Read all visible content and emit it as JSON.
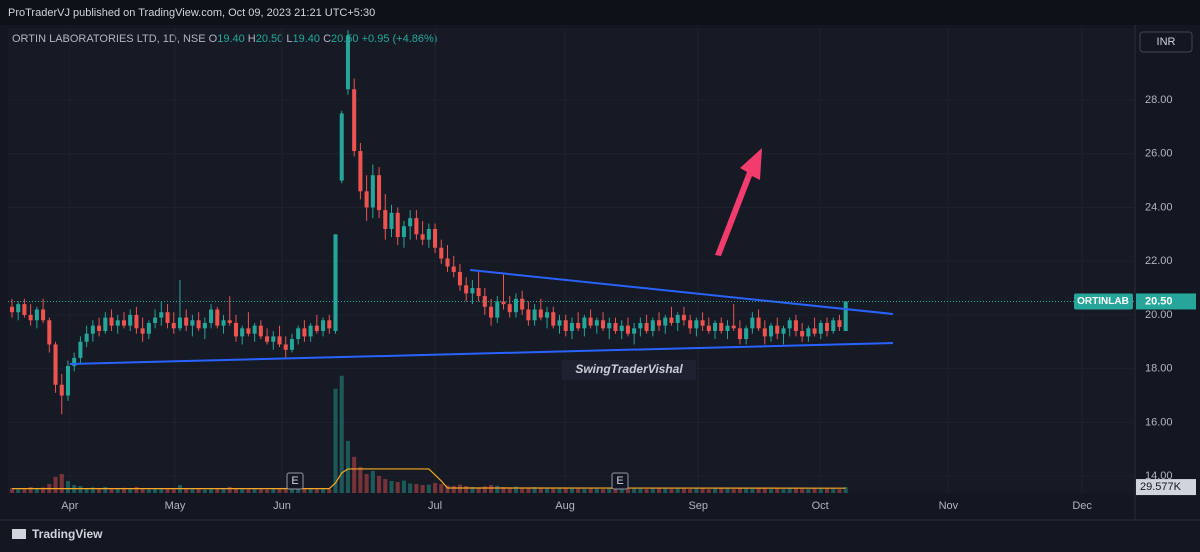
{
  "header": {
    "publisher": "ProTraderVJ published on TradingView.com, Oct 09, 2023 21:21 UTC+5:30",
    "brand": "TradingView"
  },
  "chart_data": {
    "type": "candlestick",
    "symbol": "ORTIN LABORATORIES LTD, 1D, NSE",
    "ohlc_header": [
      {
        "key": "O",
        "value": "19.40"
      },
      {
        "key": "H",
        "value": "20.50"
      },
      {
        "key": "L",
        "value": "19.40"
      },
      {
        "key": "C",
        "value": "20.50"
      }
    ],
    "change": "+0.95 (+4.86%)",
    "currency": "INR",
    "price_label": {
      "symbol": "ORTINLAB",
      "value": "20.50"
    },
    "annotation": "SwingTraderVishal",
    "events": [
      "E",
      "E"
    ],
    "up_color": "#26a69a",
    "down_color": "#ef5350",
    "ylim": [
      13.37,
      30.68
    ],
    "yticks": [
      {
        "value": 14,
        "label": "14.00"
      },
      {
        "value": 16,
        "label": "16.00"
      },
      {
        "value": 18,
        "label": "18.00"
      },
      {
        "value": 20,
        "label": "20.00"
      },
      {
        "value": 22,
        "label": "22.00"
      },
      {
        "value": 24,
        "label": "24.00"
      },
      {
        "value": 26,
        "label": "26.00"
      },
      {
        "value": 28,
        "label": "28.00"
      }
    ],
    "xlim": [
      -0.64,
      180.5
    ],
    "xticks": [
      {
        "value": 9.3,
        "label": "Apr"
      },
      {
        "value": 26.2,
        "label": "May"
      },
      {
        "value": 43.4,
        "label": "Jun"
      },
      {
        "value": 68,
        "label": "Jul"
      },
      {
        "value": 88.9,
        "label": "Aug"
      },
      {
        "value": 110.3,
        "label": "Sep"
      },
      {
        "value": 129.9,
        "label": "Oct"
      },
      {
        "value": 150.5,
        "label": "Nov"
      },
      {
        "value": 172,
        "label": "Dec"
      }
    ],
    "y2lim": [
      0,
      2320
    ],
    "y2ticks": [
      {
        "value": 29.577,
        "label": "29.577K"
      }
    ],
    "ohlc": [
      [
        20.3,
        20.6,
        19.9,
        20.1
      ],
      [
        20.1,
        20.5,
        19.8,
        20.4
      ],
      [
        20.4,
        20.6,
        19.9,
        20.0
      ],
      [
        20.0,
        20.4,
        19.6,
        19.8
      ],
      [
        19.8,
        20.3,
        19.5,
        20.2
      ],
      [
        20.2,
        20.6,
        19.7,
        19.8
      ],
      [
        19.8,
        19.9,
        18.6,
        18.9
      ],
      [
        18.9,
        19.0,
        17.1,
        17.4
      ],
      [
        17.4,
        17.8,
        16.3,
        17.0
      ],
      [
        17.0,
        18.3,
        16.8,
        18.1
      ],
      [
        18.1,
        18.6,
        17.9,
        18.4
      ],
      [
        18.4,
        19.2,
        18.2,
        19.0
      ],
      [
        19.0,
        19.6,
        18.8,
        19.3
      ],
      [
        19.3,
        19.8,
        19.0,
        19.6
      ],
      [
        19.6,
        19.9,
        19.2,
        19.4
      ],
      [
        19.4,
        20.1,
        19.3,
        19.9
      ],
      [
        19.9,
        20.2,
        19.4,
        19.6
      ],
      [
        19.6,
        20.0,
        19.3,
        19.8
      ],
      [
        19.8,
        20.1,
        19.5,
        19.6
      ],
      [
        19.6,
        20.2,
        19.4,
        20.0
      ],
      [
        20.0,
        20.3,
        19.3,
        19.5
      ],
      [
        19.5,
        19.9,
        19.0,
        19.3
      ],
      [
        19.3,
        19.8,
        19.1,
        19.7
      ],
      [
        19.7,
        20.2,
        19.5,
        19.9
      ],
      [
        19.9,
        20.5,
        19.6,
        20.1
      ],
      [
        20.1,
        20.4,
        19.5,
        19.7
      ],
      [
        19.7,
        20.1,
        19.3,
        19.5
      ],
      [
        19.5,
        21.3,
        19.4,
        19.9
      ],
      [
        19.9,
        20.2,
        19.4,
        19.6
      ],
      [
        19.6,
        20.0,
        19.2,
        19.8
      ],
      [
        19.8,
        20.1,
        19.4,
        19.5
      ],
      [
        19.5,
        19.9,
        19.1,
        19.7
      ],
      [
        19.7,
        20.4,
        19.5,
        20.2
      ],
      [
        20.2,
        20.3,
        19.5,
        19.6
      ],
      [
        19.6,
        20.0,
        19.3,
        19.8
      ],
      [
        19.8,
        20.7,
        19.6,
        19.7
      ],
      [
        19.7,
        20.0,
        19.0,
        19.2
      ],
      [
        19.2,
        19.6,
        18.9,
        19.5
      ],
      [
        19.5,
        20.1,
        19.2,
        19.3
      ],
      [
        19.3,
        19.7,
        19.0,
        19.6
      ],
      [
        19.6,
        19.8,
        19.1,
        19.2
      ],
      [
        19.2,
        19.5,
        18.9,
        19.0
      ],
      [
        19.0,
        19.4,
        18.7,
        19.2
      ],
      [
        19.2,
        19.6,
        18.8,
        18.9
      ],
      [
        18.9,
        19.2,
        18.4,
        18.7
      ],
      [
        18.7,
        19.3,
        18.6,
        19.1
      ],
      [
        19.1,
        19.6,
        18.9,
        19.5
      ],
      [
        19.5,
        19.8,
        19.0,
        19.2
      ],
      [
        19.2,
        19.7,
        19.0,
        19.6
      ],
      [
        19.6,
        20.0,
        19.3,
        19.4
      ],
      [
        19.4,
        19.9,
        19.2,
        19.8
      ],
      [
        19.8,
        20.0,
        19.3,
        19.5
      ],
      [
        19.4,
        23.0,
        19.3,
        23.0
      ],
      [
        25.0,
        27.6,
        24.9,
        27.5
      ],
      [
        28.4,
        30.6,
        28.2,
        30.4
      ],
      [
        28.4,
        28.8,
        25.9,
        26.1
      ],
      [
        26.1,
        26.4,
        24.3,
        24.6
      ],
      [
        24.6,
        25.2,
        23.5,
        24.0
      ],
      [
        24.0,
        25.6,
        23.6,
        25.2
      ],
      [
        25.2,
        25.5,
        23.6,
        23.9
      ],
      [
        23.9,
        24.5,
        22.8,
        23.2
      ],
      [
        23.2,
        24.1,
        22.9,
        23.8
      ],
      [
        23.8,
        24.0,
        22.6,
        22.9
      ],
      [
        22.9,
        23.5,
        22.5,
        23.3
      ],
      [
        23.3,
        23.9,
        22.8,
        23.6
      ],
      [
        23.6,
        23.9,
        22.8,
        23.0
      ],
      [
        23.0,
        23.5,
        22.6,
        22.8
      ],
      [
        22.8,
        23.4,
        22.5,
        23.2
      ],
      [
        23.2,
        23.4,
        22.3,
        22.5
      ],
      [
        22.5,
        22.8,
        21.9,
        22.1
      ],
      [
        22.1,
        22.6,
        21.6,
        21.8
      ],
      [
        21.8,
        22.2,
        21.4,
        21.6
      ],
      [
        21.6,
        21.9,
        20.9,
        21.1
      ],
      [
        21.1,
        21.4,
        20.5,
        20.8
      ],
      [
        20.8,
        21.3,
        20.4,
        21.0
      ],
      [
        21.0,
        21.6,
        20.5,
        20.7
      ],
      [
        20.7,
        21.0,
        20.0,
        20.3
      ],
      [
        20.3,
        20.6,
        19.6,
        19.9
      ],
      [
        19.9,
        20.7,
        19.7,
        20.5
      ],
      [
        20.5,
        21.5,
        20.2,
        20.4
      ],
      [
        20.4,
        20.7,
        19.9,
        20.1
      ],
      [
        20.1,
        20.8,
        19.9,
        20.6
      ],
      [
        20.6,
        20.9,
        20.0,
        20.2
      ],
      [
        20.2,
        20.5,
        19.6,
        19.8
      ],
      [
        19.8,
        20.4,
        19.6,
        20.2
      ],
      [
        20.2,
        20.6,
        19.8,
        19.9
      ],
      [
        19.9,
        20.3,
        19.5,
        20.1
      ],
      [
        20.1,
        20.3,
        19.5,
        19.6
      ],
      [
        19.6,
        20.0,
        19.3,
        19.8
      ],
      [
        19.8,
        20.0,
        19.2,
        19.4
      ],
      [
        19.4,
        19.9,
        19.1,
        19.7
      ],
      [
        19.7,
        20.1,
        19.4,
        19.5
      ],
      [
        19.5,
        20.0,
        19.2,
        19.9
      ],
      [
        19.9,
        20.2,
        19.5,
        19.6
      ],
      [
        19.6,
        19.9,
        19.3,
        19.8
      ],
      [
        19.8,
        20.1,
        19.4,
        19.5
      ],
      [
        19.5,
        19.9,
        19.1,
        19.7
      ],
      [
        19.7,
        19.9,
        19.3,
        19.4
      ],
      [
        19.4,
        19.8,
        19.1,
        19.6
      ],
      [
        19.6,
        19.9,
        19.2,
        19.3
      ],
      [
        19.3,
        19.7,
        18.9,
        19.5
      ],
      [
        19.5,
        19.9,
        19.2,
        19.7
      ],
      [
        19.7,
        20.0,
        19.3,
        19.4
      ],
      [
        19.4,
        19.9,
        19.2,
        19.8
      ],
      [
        19.8,
        20.1,
        19.4,
        19.6
      ],
      [
        19.6,
        20.0,
        19.3,
        19.9
      ],
      [
        19.9,
        20.3,
        19.6,
        19.7
      ],
      [
        19.7,
        20.1,
        19.4,
        20.0
      ],
      [
        20.0,
        20.3,
        19.6,
        19.8
      ],
      [
        19.8,
        20.0,
        19.3,
        19.5
      ],
      [
        19.5,
        19.9,
        19.2,
        19.8
      ],
      [
        19.8,
        20.1,
        19.4,
        19.6
      ],
      [
        19.6,
        19.9,
        19.3,
        19.4
      ],
      [
        19.4,
        19.8,
        19.1,
        19.7
      ],
      [
        19.7,
        19.9,
        19.3,
        19.4
      ],
      [
        19.4,
        19.8,
        19.1,
        19.6
      ],
      [
        19.6,
        20.4,
        19.4,
        19.5
      ],
      [
        19.5,
        19.8,
        18.9,
        19.1
      ],
      [
        19.1,
        19.6,
        18.9,
        19.5
      ],
      [
        19.5,
        20.1,
        19.3,
        19.9
      ],
      [
        19.9,
        20.2,
        19.4,
        19.5
      ],
      [
        19.5,
        19.8,
        18.9,
        19.2
      ],
      [
        19.2,
        19.7,
        19.0,
        19.6
      ],
      [
        19.6,
        19.9,
        19.1,
        19.3
      ],
      [
        19.3,
        19.6,
        18.9,
        19.5
      ],
      [
        19.5,
        19.9,
        19.2,
        19.8
      ],
      [
        19.8,
        20.0,
        19.2,
        19.4
      ],
      [
        19.4,
        19.7,
        19.0,
        19.2
      ],
      [
        19.2,
        19.6,
        19.0,
        19.5
      ],
      [
        19.5,
        19.9,
        19.2,
        19.3
      ],
      [
        19.3,
        19.8,
        19.1,
        19.7
      ],
      [
        19.7,
        19.9,
        19.2,
        19.4
      ],
      [
        19.4,
        19.9,
        19.3,
        19.8
      ],
      [
        19.8,
        20.0,
        19.4,
        19.55
      ],
      [
        19.4,
        20.5,
        19.4,
        20.5
      ]
    ],
    "volume": [
      25,
      18,
      22,
      30,
      20,
      28,
      45,
      80,
      95,
      60,
      40,
      35,
      25,
      28,
      22,
      30,
      24,
      20,
      26,
      22,
      30,
      25,
      18,
      20,
      24,
      22,
      19,
      40,
      22,
      18,
      20,
      17,
      25,
      21,
      19,
      30,
      24,
      20,
      18,
      22,
      19,
      17,
      20,
      23,
      26,
      21,
      18,
      20,
      24,
      19,
      22,
      20,
      520,
      585,
      260,
      180,
      130,
      95,
      110,
      85,
      70,
      60,
      55,
      62,
      48,
      45,
      40,
      42,
      50,
      45,
      38,
      36,
      42,
      35,
      30,
      28,
      33,
      40,
      36,
      30,
      28,
      32,
      26,
      24,
      30,
      27,
      25,
      22,
      28,
      24,
      26,
      23,
      21,
      25,
      22,
      20,
      24,
      19,
      23,
      21,
      25,
      22,
      20,
      24,
      26,
      23,
      21,
      27,
      22,
      20,
      25,
      23,
      19,
      22,
      28,
      24,
      20,
      26,
      22,
      21,
      25,
      24,
      20,
      23,
      19,
      22,
      27,
      21,
      20,
      24,
      22,
      23,
      21,
      19,
      29.577
    ],
    "volume_ma": {
      "color": "#f5a623",
      "x": [
        0,
        51,
        52,
        53,
        54,
        67,
        69,
        70,
        134
      ],
      "values": [
        22,
        22,
        50,
        100,
        120,
        120,
        60,
        25,
        24
      ]
    }
  }
}
